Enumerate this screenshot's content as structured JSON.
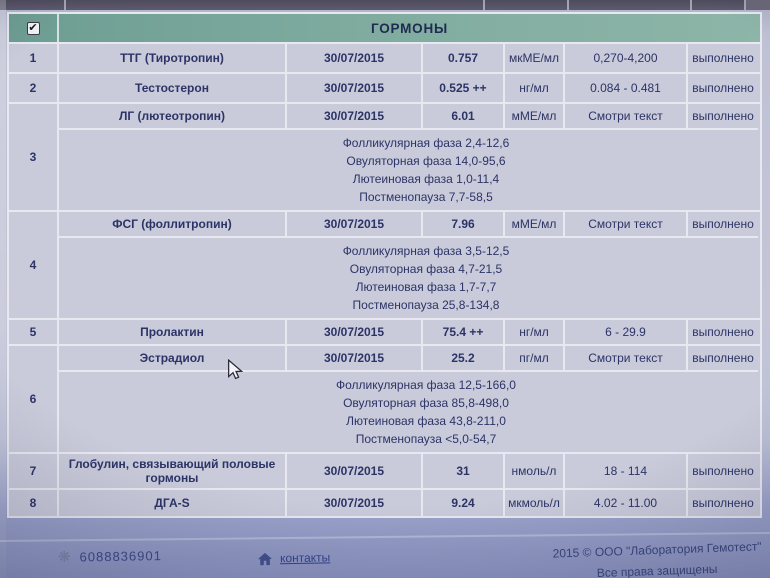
{
  "header": {
    "title": "ГОРМОНЫ",
    "checkbox_checked": true
  },
  "table": {
    "groups": [
      {
        "num": "1",
        "name": "ТТГ (Тиротропин)",
        "date": "30/07/2015",
        "value": "0.757",
        "unit": "мкМЕ/мл",
        "reference": "0,270-4,200",
        "status": "выполнено"
      },
      {
        "num": "2",
        "name": "Тестостерон",
        "date": "30/07/2015",
        "value": "0.525 ++",
        "unit": "нг/мл",
        "reference": "0.084 - 0.481",
        "status": "выполнено"
      },
      {
        "num": "3",
        "name": "ЛГ (лютеотропин)",
        "date": "30/07/2015",
        "value": "6.01",
        "unit": "мМЕ/мл",
        "reference": "Смотри текст",
        "status": "выполнено",
        "notes": [
          "Фолликулярная фаза 2,4-12,6",
          "Овуляторная фаза 14,0-95,6",
          "Лютеиновая фаза 1,0-11,4",
          "Постменопауза 7,7-58,5"
        ]
      },
      {
        "num": "4",
        "name": "ФСГ (фоллитропин)",
        "date": "30/07/2015",
        "value": "7.96",
        "unit": "мМЕ/мл",
        "reference": "Смотри текст",
        "status": "выполнено",
        "notes": [
          "Фолликулярная фаза 3,5-12,5",
          "Овуляторная фаза 4,7-21,5",
          "Лютеиновая фаза 1,7-7,7",
          "Постменопауза 25,8-134,8"
        ]
      },
      {
        "num": "5",
        "name": "Пролактин",
        "date": "30/07/2015",
        "value": "75.4 ++",
        "unit": "нг/мл",
        "reference": "6 - 29.9",
        "status": "выполнено"
      },
      {
        "num": "6",
        "name": "Эстрадиол",
        "date": "30/07/2015",
        "value": "25.2",
        "unit": "пг/мл",
        "reference": "Смотри текст",
        "status": "выполнено",
        "notes": [
          "Фолликулярная фаза 12,5-166,0",
          "Овуляторная фаза 85,8-498,0",
          "Лютеиновая фаза 43,8-211,0",
          "Постменопауза <5,0-54,7"
        ]
      },
      {
        "num": "7",
        "name": "Глобулин, связывающий половые гормоны",
        "date": "30/07/2015",
        "value": "31",
        "unit": "нмоль/л",
        "reference": "18 - 114",
        "status": "выполнено"
      },
      {
        "num": "8",
        "name": "ДГА-S",
        "date": "30/07/2015",
        "value": "9.24",
        "unit": "мкмоль/л",
        "reference": "4.02 - 11.00",
        "status": "выполнено"
      }
    ]
  },
  "footer": {
    "id_number": "6088836901",
    "contacts": "контакты",
    "copyright": "2015 © ООО \"Лаборатория Гемотест\"",
    "rights": "Все права защищены"
  },
  "colors": {
    "header_teal": "#79a89d",
    "text_navy": "#2c3467",
    "row_bg": "#c9cada",
    "grid_line": "#e8e8f0",
    "topbar": "#565365",
    "footer_text": "#3b4987",
    "page_top": "#b7bacf",
    "page_bottom": "#8b94c1"
  }
}
